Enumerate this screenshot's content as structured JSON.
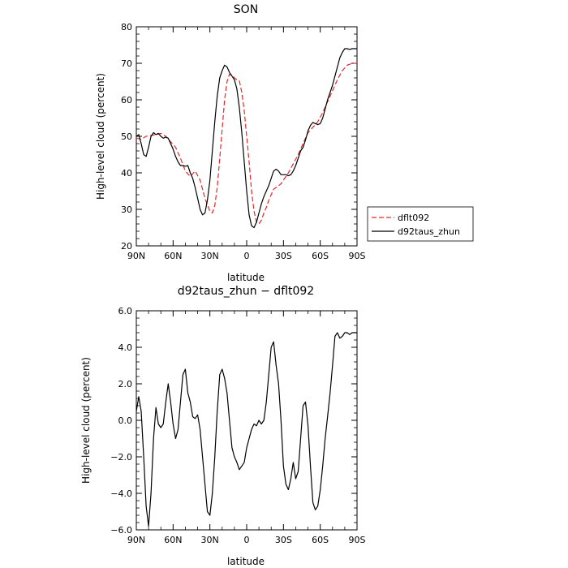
{
  "chart_data": [
    {
      "type": "line",
      "title": "SON",
      "xlabel": "latitude",
      "ylabel": "High-level cloud (percent)",
      "xlim": [
        90,
        -90
      ],
      "ylim": [
        20,
        80
      ],
      "xticks": [
        90,
        60,
        30,
        0,
        -30,
        -60,
        -90
      ],
      "xtick_labels": [
        "90N",
        "60N",
        "30N",
        "0",
        "30S",
        "60S",
        "90S"
      ],
      "yticks": [
        20,
        30,
        40,
        50,
        60,
        70,
        80
      ],
      "ytick_labels": [
        "20",
        "30",
        "40",
        "50",
        "60",
        "70",
        "80"
      ],
      "legend_position": "right",
      "series": [
        {
          "name": "dflt092",
          "color": "#e8262b",
          "dash": "dashed",
          "x": [
            90,
            86,
            82,
            78,
            74,
            70,
            66,
            62,
            58,
            54,
            50,
            46,
            42,
            38,
            34,
            30,
            28,
            26,
            24,
            22,
            20,
            18,
            16,
            14,
            12,
            10,
            8,
            6,
            4,
            2,
            0,
            -2,
            -4,
            -6,
            -8,
            -10,
            -12,
            -14,
            -16,
            -18,
            -20,
            -22,
            -24,
            -26,
            -28,
            -30,
            -34,
            -38,
            -42,
            -46,
            -50,
            -54,
            -58,
            -62,
            -66,
            -70,
            -74,
            -78,
            -82,
            -86,
            -90
          ],
          "y": [
            49.5,
            49.2,
            50.0,
            50.2,
            50.5,
            50.8,
            50.0,
            48.5,
            47.0,
            44.0,
            40.5,
            39.0,
            40.5,
            38.0,
            33.0,
            29.5,
            29.0,
            31.0,
            36.0,
            44.0,
            52.0,
            60.0,
            65.0,
            67.0,
            66.8,
            66.0,
            65.5,
            65.3,
            62.0,
            57.0,
            50.0,
            43.0,
            35.0,
            29.5,
            26.5,
            26.0,
            27.0,
            29.0,
            30.5,
            32.5,
            34.0,
            35.5,
            36.0,
            36.5,
            37.0,
            38.0,
            40.0,
            42.5,
            45.0,
            48.0,
            51.0,
            52.5,
            54.0,
            56.5,
            59.5,
            62.5,
            65.5,
            68.0,
            69.5,
            70.0,
            70.0
          ]
        },
        {
          "name": "d92taus_zhun",
          "color": "#000000",
          "dash": "solid",
          "x": [
            90,
            88,
            86,
            84,
            82,
            80,
            78,
            76,
            74,
            72,
            70,
            68,
            66,
            64,
            62,
            60,
            58,
            56,
            54,
            52,
            50,
            48,
            46,
            44,
            42,
            40,
            38,
            36,
            34,
            32,
            30,
            28,
            26,
            24,
            22,
            20,
            18,
            16,
            14,
            12,
            10,
            8,
            6,
            4,
            2,
            0,
            -2,
            -4,
            -6,
            -8,
            -10,
            -12,
            -14,
            -16,
            -18,
            -20,
            -22,
            -24,
            -26,
            -28,
            -30,
            -32,
            -34,
            -36,
            -38,
            -40,
            -42,
            -44,
            -46,
            -48,
            -50,
            -52,
            -54,
            -56,
            -58,
            -60,
            -62,
            -64,
            -66,
            -68,
            -70,
            -72,
            -74,
            -76,
            -78,
            -80,
            -82,
            -84,
            -86,
            -88,
            -90
          ],
          "y": [
            50.0,
            50.5,
            48.0,
            45.0,
            44.5,
            47.0,
            50.0,
            51.0,
            50.5,
            50.8,
            50.0,
            49.5,
            49.8,
            49.5,
            48.0,
            46.5,
            44.5,
            43.0,
            42.0,
            42.0,
            41.8,
            42.0,
            40.0,
            38.5,
            36.0,
            33.0,
            30.0,
            28.5,
            29.0,
            32.5,
            38.0,
            46.0,
            54.0,
            61.0,
            66.0,
            68.0,
            69.5,
            69.0,
            67.5,
            66.5,
            65.5,
            63.0,
            58.0,
            51.0,
            43.0,
            35.0,
            28.5,
            25.5,
            25.0,
            26.5,
            29.0,
            31.5,
            33.5,
            35.0,
            36.5,
            38.5,
            40.5,
            41.0,
            40.5,
            39.5,
            39.5,
            39.5,
            39.2,
            39.5,
            40.5,
            42.0,
            44.0,
            46.0,
            47.0,
            49.0,
            51.5,
            53.0,
            53.8,
            53.5,
            53.2,
            53.5,
            55.0,
            57.5,
            60.0,
            62.0,
            64.0,
            66.5,
            69.0,
            71.5,
            73.0,
            74.0,
            74.0,
            73.8,
            74.0,
            74.0,
            74.0
          ]
        }
      ]
    },
    {
      "type": "line",
      "title": "d92taus_zhun − dflt092",
      "xlabel": "latitude",
      "ylabel": "High-level cloud (percent)",
      "xlim": [
        90,
        -90
      ],
      "ylim": [
        -6,
        6
      ],
      "xticks": [
        90,
        60,
        30,
        0,
        -30,
        -60,
        -90
      ],
      "xtick_labels": [
        "90N",
        "60N",
        "30N",
        "0",
        "30S",
        "60S",
        "90S"
      ],
      "yticks": [
        -6,
        -4,
        -2,
        0,
        2,
        4,
        6
      ],
      "ytick_labels": [
        "−6.0",
        "−4.0",
        "−2.0",
        "0.0",
        "2.0",
        "4.0",
        "6.0"
      ],
      "series": [
        {
          "color": "#000000",
          "dash": "solid",
          "x": [
            90,
            88,
            86,
            84,
            82,
            80,
            78,
            76,
            74,
            72,
            70,
            68,
            66,
            64,
            62,
            60,
            58,
            56,
            54,
            52,
            50,
            48,
            46,
            44,
            42,
            40,
            38,
            36,
            34,
            32,
            30,
            28,
            26,
            24,
            22,
            20,
            18,
            16,
            14,
            12,
            10,
            8,
            6,
            4,
            2,
            0,
            -2,
            -4,
            -6,
            -8,
            -10,
            -12,
            -14,
            -16,
            -18,
            -20,
            -22,
            -24,
            -26,
            -28,
            -30,
            -32,
            -34,
            -36,
            -38,
            -40,
            -42,
            -44,
            -46,
            -48,
            -50,
            -52,
            -54,
            -56,
            -58,
            -60,
            -62,
            -64,
            -66,
            -68,
            -70,
            -72,
            -74,
            -76,
            -78,
            -80,
            -82,
            -84,
            -86,
            -88,
            -90
          ],
          "y": [
            0.5,
            1.3,
            0.5,
            -2.0,
            -4.7,
            -5.8,
            -4.0,
            -1.0,
            0.7,
            -0.2,
            -0.4,
            -0.2,
            1.0,
            2.0,
            1.0,
            -0.2,
            -1.0,
            -0.5,
            1.0,
            2.5,
            2.8,
            1.5,
            1.0,
            0.2,
            0.1,
            0.3,
            -0.5,
            -2.0,
            -3.5,
            -5.0,
            -5.2,
            -4.0,
            -2.0,
            0.5,
            2.5,
            2.8,
            2.3,
            1.5,
            0.0,
            -1.5,
            -2.0,
            -2.3,
            -2.7,
            -2.5,
            -2.3,
            -1.5,
            -1.0,
            -0.5,
            -0.2,
            -0.3,
            0.0,
            -0.2,
            0.0,
            1.0,
            2.5,
            4.0,
            4.3,
            3.0,
            2.0,
            0.0,
            -2.5,
            -3.5,
            -3.8,
            -3.2,
            -2.3,
            -3.2,
            -2.8,
            -1.0,
            0.8,
            1.0,
            -0.3,
            -2.5,
            -4.5,
            -4.9,
            -4.7,
            -3.8,
            -2.5,
            -1.0,
            0.2,
            1.5,
            3.0,
            4.6,
            4.8,
            4.5,
            4.6,
            4.8,
            4.8,
            4.7,
            4.8,
            4.8,
            4.8
          ]
        }
      ]
    }
  ]
}
